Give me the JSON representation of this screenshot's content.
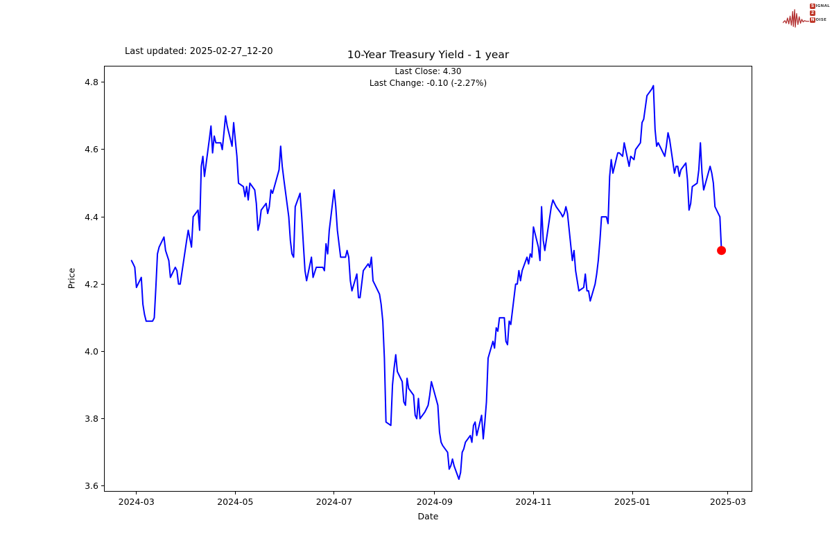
{
  "header": {
    "last_updated": "Last updated: 2025-02-27_12-20",
    "logo": {
      "color": "#b23030",
      "box_color": "#c0392b",
      "row1_first": "S",
      "row1_rest": "IGNAL",
      "row2_first": "2",
      "row2_rest": "",
      "row3_first": "N",
      "row3_rest": "OISE"
    }
  },
  "chart_data": {
    "type": "line",
    "title": "10-Year Treasury Yield - 1 year",
    "subtitle_line1": "Last Close: 4.30",
    "subtitle_line2": "Last Change: -0.10 (-2.27%)",
    "last_close": 4.3,
    "last_change": -0.1,
    "last_change_pct": "-2.27%",
    "xlabel": "Date",
    "ylabel": "Price",
    "line_color": "#0000ff",
    "marker_color": "#ff0000",
    "grid": false,
    "legend": "none",
    "ylim": [
      3.583,
      4.849
    ],
    "xlim_dates": [
      "2024-02-10",
      "2025-03-16"
    ],
    "y_ticks": [
      {
        "v": 4.8,
        "label": "4.8"
      },
      {
        "v": 4.6,
        "label": "4.6"
      },
      {
        "v": 4.4,
        "label": "4.4"
      },
      {
        "v": 4.2,
        "label": "4.2"
      },
      {
        "v": 4.0,
        "label": "4.0"
      },
      {
        "v": 3.8,
        "label": "3.8"
      },
      {
        "v": 3.6,
        "label": "3.6"
      }
    ],
    "x_ticks": [
      {
        "date": "2024-03-01",
        "label": "2024-03"
      },
      {
        "date": "2024-05-01",
        "label": "2024-05"
      },
      {
        "date": "2024-07-01",
        "label": "2024-07"
      },
      {
        "date": "2024-09-01",
        "label": "2024-09"
      },
      {
        "date": "2024-11-01",
        "label": "2024-11"
      },
      {
        "date": "2025-01-01",
        "label": "2025-01"
      },
      {
        "date": "2025-03-01",
        "label": "2025-03"
      }
    ],
    "series": [
      {
        "name": "10-Year Treasury Yield",
        "points": [
          [
            "2024-02-27",
            4.27
          ],
          [
            "2024-02-28",
            4.26
          ],
          [
            "2024-02-29",
            4.25
          ],
          [
            "2024-03-01",
            4.19
          ],
          [
            "2024-03-04",
            4.22
          ],
          [
            "2024-03-05",
            4.14
          ],
          [
            "2024-03-06",
            4.11
          ],
          [
            "2024-03-07",
            4.09
          ],
          [
            "2024-03-08",
            4.09
          ],
          [
            "2024-03-11",
            4.09
          ],
          [
            "2024-03-12",
            4.1
          ],
          [
            "2024-03-13",
            4.19
          ],
          [
            "2024-03-14",
            4.29
          ],
          [
            "2024-03-15",
            4.31
          ],
          [
            "2024-03-18",
            4.34
          ],
          [
            "2024-03-19",
            4.3
          ],
          [
            "2024-03-21",
            4.27
          ],
          [
            "2024-03-22",
            4.22
          ],
          [
            "2024-03-25",
            4.25
          ],
          [
            "2024-03-26",
            4.24
          ],
          [
            "2024-03-27",
            4.2
          ],
          [
            "2024-03-28",
            4.2
          ],
          [
            "2024-04-01",
            4.33
          ],
          [
            "2024-04-02",
            4.36
          ],
          [
            "2024-04-04",
            4.31
          ],
          [
            "2024-04-05",
            4.4
          ],
          [
            "2024-04-08",
            4.42
          ],
          [
            "2024-04-09",
            4.36
          ],
          [
            "2024-04-10",
            4.55
          ],
          [
            "2024-04-11",
            4.58
          ],
          [
            "2024-04-12",
            4.52
          ],
          [
            "2024-04-15",
            4.63
          ],
          [
            "2024-04-16",
            4.67
          ],
          [
            "2024-04-17",
            4.59
          ],
          [
            "2024-04-18",
            4.64
          ],
          [
            "2024-04-19",
            4.62
          ],
          [
            "2024-04-22",
            4.62
          ],
          [
            "2024-04-23",
            4.6
          ],
          [
            "2024-04-24",
            4.65
          ],
          [
            "2024-04-25",
            4.7
          ],
          [
            "2024-04-26",
            4.67
          ],
          [
            "2024-04-29",
            4.61
          ],
          [
            "2024-04-30",
            4.68
          ],
          [
            "2024-05-01",
            4.63
          ],
          [
            "2024-05-02",
            4.58
          ],
          [
            "2024-05-03",
            4.5
          ],
          [
            "2024-05-06",
            4.49
          ],
          [
            "2024-05-07",
            4.46
          ],
          [
            "2024-05-08",
            4.49
          ],
          [
            "2024-05-09",
            4.45
          ],
          [
            "2024-05-10",
            4.5
          ],
          [
            "2024-05-13",
            4.48
          ],
          [
            "2024-05-14",
            4.44
          ],
          [
            "2024-05-15",
            4.36
          ],
          [
            "2024-05-16",
            4.38
          ],
          [
            "2024-05-17",
            4.42
          ],
          [
            "2024-05-20",
            4.44
          ],
          [
            "2024-05-21",
            4.41
          ],
          [
            "2024-05-22",
            4.43
          ],
          [
            "2024-05-23",
            4.48
          ],
          [
            "2024-05-24",
            4.47
          ],
          [
            "2024-05-28",
            4.54
          ],
          [
            "2024-05-29",
            4.61
          ],
          [
            "2024-05-30",
            4.55
          ],
          [
            "2024-05-31",
            4.51
          ],
          [
            "2024-06-03",
            4.4
          ],
          [
            "2024-06-04",
            4.33
          ],
          [
            "2024-06-05",
            4.29
          ],
          [
            "2024-06-06",
            4.28
          ],
          [
            "2024-06-07",
            4.43
          ],
          [
            "2024-06-10",
            4.47
          ],
          [
            "2024-06-11",
            4.4
          ],
          [
            "2024-06-12",
            4.32
          ],
          [
            "2024-06-13",
            4.24
          ],
          [
            "2024-06-14",
            4.21
          ],
          [
            "2024-06-17",
            4.28
          ],
          [
            "2024-06-18",
            4.22
          ],
          [
            "2024-06-20",
            4.25
          ],
          [
            "2024-06-21",
            4.25
          ],
          [
            "2024-06-24",
            4.25
          ],
          [
            "2024-06-25",
            4.24
          ],
          [
            "2024-06-26",
            4.32
          ],
          [
            "2024-06-27",
            4.29
          ],
          [
            "2024-06-28",
            4.36
          ],
          [
            "2024-07-01",
            4.48
          ],
          [
            "2024-07-02",
            4.43
          ],
          [
            "2024-07-03",
            4.36
          ],
          [
            "2024-07-05",
            4.28
          ],
          [
            "2024-07-08",
            4.28
          ],
          [
            "2024-07-09",
            4.3
          ],
          [
            "2024-07-10",
            4.28
          ],
          [
            "2024-07-11",
            4.21
          ],
          [
            "2024-07-12",
            4.18
          ],
          [
            "2024-07-15",
            4.23
          ],
          [
            "2024-07-16",
            4.16
          ],
          [
            "2024-07-17",
            4.16
          ],
          [
            "2024-07-19",
            4.24
          ],
          [
            "2024-07-22",
            4.26
          ],
          [
            "2024-07-23",
            4.25
          ],
          [
            "2024-07-24",
            4.28
          ],
          [
            "2024-07-25",
            4.21
          ],
          [
            "2024-07-26",
            4.2
          ],
          [
            "2024-07-29",
            4.17
          ],
          [
            "2024-07-30",
            4.14
          ],
          [
            "2024-07-31",
            4.09
          ],
          [
            "2024-08-01",
            3.98
          ],
          [
            "2024-08-02",
            3.79
          ],
          [
            "2024-08-05",
            3.78
          ],
          [
            "2024-08-06",
            3.9
          ],
          [
            "2024-08-07",
            3.95
          ],
          [
            "2024-08-08",
            3.99
          ],
          [
            "2024-08-09",
            3.94
          ],
          [
            "2024-08-12",
            3.91
          ],
          [
            "2024-08-13",
            3.85
          ],
          [
            "2024-08-14",
            3.84
          ],
          [
            "2024-08-15",
            3.92
          ],
          [
            "2024-08-16",
            3.89
          ],
          [
            "2024-08-19",
            3.87
          ],
          [
            "2024-08-20",
            3.81
          ],
          [
            "2024-08-21",
            3.8
          ],
          [
            "2024-08-22",
            3.86
          ],
          [
            "2024-08-23",
            3.8
          ],
          [
            "2024-08-26",
            3.82
          ],
          [
            "2024-08-27",
            3.83
          ],
          [
            "2024-08-28",
            3.84
          ],
          [
            "2024-08-29",
            3.87
          ],
          [
            "2024-08-30",
            3.91
          ],
          [
            "2024-09-03",
            3.84
          ],
          [
            "2024-09-04",
            3.76
          ],
          [
            "2024-09-05",
            3.73
          ],
          [
            "2024-09-06",
            3.72
          ],
          [
            "2024-09-09",
            3.7
          ],
          [
            "2024-09-10",
            3.65
          ],
          [
            "2024-09-11",
            3.66
          ],
          [
            "2024-09-12",
            3.68
          ],
          [
            "2024-09-13",
            3.66
          ],
          [
            "2024-09-16",
            3.62
          ],
          [
            "2024-09-17",
            3.64
          ],
          [
            "2024-09-18",
            3.7
          ],
          [
            "2024-09-19",
            3.71
          ],
          [
            "2024-09-20",
            3.73
          ],
          [
            "2024-09-23",
            3.75
          ],
          [
            "2024-09-24",
            3.73
          ],
          [
            "2024-09-25",
            3.78
          ],
          [
            "2024-09-26",
            3.79
          ],
          [
            "2024-09-27",
            3.75
          ],
          [
            "2024-09-30",
            3.81
          ],
          [
            "2024-10-01",
            3.74
          ],
          [
            "2024-10-02",
            3.79
          ],
          [
            "2024-10-03",
            3.85
          ],
          [
            "2024-10-04",
            3.98
          ],
          [
            "2024-10-07",
            4.03
          ],
          [
            "2024-10-08",
            4.01
          ],
          [
            "2024-10-09",
            4.07
          ],
          [
            "2024-10-10",
            4.06
          ],
          [
            "2024-10-11",
            4.1
          ],
          [
            "2024-10-14",
            4.1
          ],
          [
            "2024-10-15",
            4.03
          ],
          [
            "2024-10-16",
            4.02
          ],
          [
            "2024-10-17",
            4.09
          ],
          [
            "2024-10-18",
            4.08
          ],
          [
            "2024-10-21",
            4.2
          ],
          [
            "2024-10-22",
            4.2
          ],
          [
            "2024-10-23",
            4.24
          ],
          [
            "2024-10-24",
            4.21
          ],
          [
            "2024-10-25",
            4.24
          ],
          [
            "2024-10-28",
            4.28
          ],
          [
            "2024-10-29",
            4.26
          ],
          [
            "2024-10-30",
            4.29
          ],
          [
            "2024-10-31",
            4.28
          ],
          [
            "2024-11-01",
            4.37
          ],
          [
            "2024-11-04",
            4.31
          ],
          [
            "2024-11-05",
            4.27
          ],
          [
            "2024-11-06",
            4.43
          ],
          [
            "2024-11-07",
            4.33
          ],
          [
            "2024-11-08",
            4.3
          ],
          [
            "2024-11-12",
            4.43
          ],
          [
            "2024-11-13",
            4.45
          ],
          [
            "2024-11-14",
            4.44
          ],
          [
            "2024-11-15",
            4.43
          ],
          [
            "2024-11-18",
            4.41
          ],
          [
            "2024-11-19",
            4.4
          ],
          [
            "2024-11-20",
            4.41
          ],
          [
            "2024-11-21",
            4.43
          ],
          [
            "2024-11-22",
            4.41
          ],
          [
            "2024-11-25",
            4.27
          ],
          [
            "2024-11-26",
            4.3
          ],
          [
            "2024-11-27",
            4.24
          ],
          [
            "2024-11-29",
            4.18
          ],
          [
            "2024-12-02",
            4.19
          ],
          [
            "2024-12-03",
            4.23
          ],
          [
            "2024-12-04",
            4.18
          ],
          [
            "2024-12-05",
            4.18
          ],
          [
            "2024-12-06",
            4.15
          ],
          [
            "2024-12-09",
            4.2
          ],
          [
            "2024-12-10",
            4.23
          ],
          [
            "2024-12-11",
            4.27
          ],
          [
            "2024-12-12",
            4.33
          ],
          [
            "2024-12-13",
            4.4
          ],
          [
            "2024-12-16",
            4.4
          ],
          [
            "2024-12-17",
            4.38
          ],
          [
            "2024-12-18",
            4.52
          ],
          [
            "2024-12-19",
            4.57
          ],
          [
            "2024-12-20",
            4.53
          ],
          [
            "2024-12-23",
            4.59
          ],
          [
            "2024-12-24",
            4.59
          ],
          [
            "2024-12-26",
            4.58
          ],
          [
            "2024-12-27",
            4.62
          ],
          [
            "2024-12-30",
            4.55
          ],
          [
            "2024-12-31",
            4.58
          ],
          [
            "2025-01-02",
            4.57
          ],
          [
            "2025-01-03",
            4.6
          ],
          [
            "2025-01-06",
            4.62
          ],
          [
            "2025-01-07",
            4.68
          ],
          [
            "2025-01-08",
            4.69
          ],
          [
            "2025-01-10",
            4.76
          ],
          [
            "2025-01-13",
            4.78
          ],
          [
            "2025-01-14",
            4.79
          ],
          [
            "2025-01-15",
            4.66
          ],
          [
            "2025-01-16",
            4.61
          ],
          [
            "2025-01-17",
            4.62
          ],
          [
            "2025-01-21",
            4.58
          ],
          [
            "2025-01-22",
            4.61
          ],
          [
            "2025-01-23",
            4.65
          ],
          [
            "2025-01-24",
            4.63
          ],
          [
            "2025-01-27",
            4.53
          ],
          [
            "2025-01-28",
            4.55
          ],
          [
            "2025-01-29",
            4.55
          ],
          [
            "2025-01-30",
            4.52
          ],
          [
            "2025-01-31",
            4.54
          ],
          [
            "2025-02-03",
            4.56
          ],
          [
            "2025-02-04",
            4.51
          ],
          [
            "2025-02-05",
            4.42
          ],
          [
            "2025-02-06",
            4.44
          ],
          [
            "2025-02-07",
            4.49
          ],
          [
            "2025-02-10",
            4.5
          ],
          [
            "2025-02-11",
            4.54
          ],
          [
            "2025-02-12",
            4.62
          ],
          [
            "2025-02-13",
            4.53
          ],
          [
            "2025-02-14",
            4.48
          ],
          [
            "2025-02-18",
            4.55
          ],
          [
            "2025-02-19",
            4.53
          ],
          [
            "2025-02-20",
            4.5
          ],
          [
            "2025-02-21",
            4.43
          ],
          [
            "2025-02-24",
            4.4
          ],
          [
            "2025-02-25",
            4.3
          ]
        ]
      }
    ],
    "last_point": {
      "date": "2025-02-25",
      "value": 4.3
    }
  }
}
